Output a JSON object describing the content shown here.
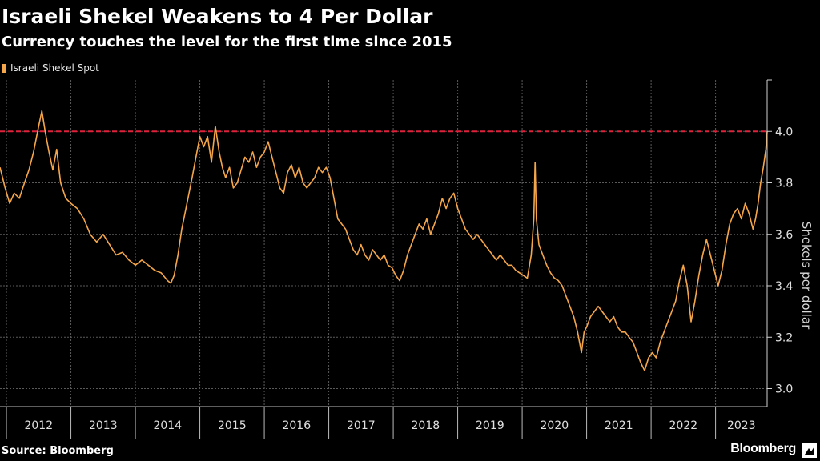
{
  "title": "Israeli Shekel Weakens to 4 Per Dollar",
  "subtitle": "Currency touches the level for the first time since 2015",
  "source": "Source: Bloomberg",
  "brand": "Bloomberg",
  "colors": {
    "series": "#f5a64a",
    "reference": "#e0213a",
    "grid": "#5a5a5a",
    "background": "#000000"
  },
  "chart_data": {
    "type": "line",
    "title": "Israeli Shekel Weakens to 4 Per Dollar",
    "subtitle": "Currency touches the level for the first time since 2015",
    "xlabel": "",
    "ylabel": "Shekels per dollar",
    "legend": [
      "Israeli Shekel Spot"
    ],
    "legend_position": "top-left",
    "y_axis_side": "right",
    "ylim": [
      2.93,
      4.2
    ],
    "yticks": [
      3.0,
      3.2,
      3.4,
      3.6,
      3.8,
      4.0
    ],
    "ytick_labels": [
      "3.0",
      "3.2",
      "3.4",
      "3.6",
      "3.8",
      "4.0"
    ],
    "xlim": [
      2011.9,
      2023.8
    ],
    "x_categories": [
      "2012",
      "2013",
      "2014",
      "2015",
      "2016",
      "2017",
      "2018",
      "2019",
      "2020",
      "2021",
      "2022",
      "2023"
    ],
    "grid": true,
    "reference_line": {
      "value": 4.0,
      "style": "dashed"
    },
    "series": [
      {
        "name": "Israeli Shekel Spot",
        "points": [
          [
            2011.9,
            3.86
          ],
          [
            2011.98,
            3.78
          ],
          [
            2012.05,
            3.72
          ],
          [
            2012.12,
            3.76
          ],
          [
            2012.2,
            3.74
          ],
          [
            2012.28,
            3.8
          ],
          [
            2012.35,
            3.85
          ],
          [
            2012.42,
            3.92
          ],
          [
            2012.5,
            4.02
          ],
          [
            2012.55,
            4.08
          ],
          [
            2012.6,
            4.0
          ],
          [
            2012.66,
            3.92
          ],
          [
            2012.72,
            3.85
          ],
          [
            2012.78,
            3.93
          ],
          [
            2012.84,
            3.8
          ],
          [
            2012.92,
            3.74
          ],
          [
            2013.0,
            3.72
          ],
          [
            2013.1,
            3.7
          ],
          [
            2013.2,
            3.66
          ],
          [
            2013.3,
            3.6
          ],
          [
            2013.4,
            3.57
          ],
          [
            2013.5,
            3.6
          ],
          [
            2013.6,
            3.56
          ],
          [
            2013.7,
            3.52
          ],
          [
            2013.8,
            3.53
          ],
          [
            2013.9,
            3.5
          ],
          [
            2014.0,
            3.48
          ],
          [
            2014.1,
            3.5
          ],
          [
            2014.2,
            3.48
          ],
          [
            2014.3,
            3.46
          ],
          [
            2014.4,
            3.45
          ],
          [
            2014.5,
            3.42
          ],
          [
            2014.55,
            3.41
          ],
          [
            2014.6,
            3.44
          ],
          [
            2014.66,
            3.52
          ],
          [
            2014.72,
            3.62
          ],
          [
            2014.8,
            3.72
          ],
          [
            2014.88,
            3.82
          ],
          [
            2014.94,
            3.9
          ],
          [
            2015.0,
            3.98
          ],
          [
            2015.06,
            3.94
          ],
          [
            2015.12,
            3.98
          ],
          [
            2015.18,
            3.88
          ],
          [
            2015.24,
            4.02
          ],
          [
            2015.3,
            3.92
          ],
          [
            2015.35,
            3.86
          ],
          [
            2015.4,
            3.82
          ],
          [
            2015.46,
            3.86
          ],
          [
            2015.52,
            3.78
          ],
          [
            2015.58,
            3.8
          ],
          [
            2015.64,
            3.85
          ],
          [
            2015.7,
            3.9
          ],
          [
            2015.76,
            3.88
          ],
          [
            2015.82,
            3.92
          ],
          [
            2015.88,
            3.86
          ],
          [
            2015.94,
            3.9
          ],
          [
            2016.0,
            3.92
          ],
          [
            2016.06,
            3.96
          ],
          [
            2016.12,
            3.9
          ],
          [
            2016.18,
            3.84
          ],
          [
            2016.24,
            3.78
          ],
          [
            2016.3,
            3.76
          ],
          [
            2016.36,
            3.84
          ],
          [
            2016.42,
            3.87
          ],
          [
            2016.48,
            3.82
          ],
          [
            2016.54,
            3.86
          ],
          [
            2016.6,
            3.8
          ],
          [
            2016.66,
            3.78
          ],
          [
            2016.72,
            3.8
          ],
          [
            2016.78,
            3.82
          ],
          [
            2016.84,
            3.86
          ],
          [
            2016.9,
            3.84
          ],
          [
            2016.96,
            3.86
          ],
          [
            2017.02,
            3.82
          ],
          [
            2017.08,
            3.74
          ],
          [
            2017.14,
            3.66
          ],
          [
            2017.2,
            3.64
          ],
          [
            2017.26,
            3.62
          ],
          [
            2017.32,
            3.58
          ],
          [
            2017.38,
            3.54
          ],
          [
            2017.44,
            3.52
          ],
          [
            2017.5,
            3.56
          ],
          [
            2017.56,
            3.52
          ],
          [
            2017.62,
            3.5
          ],
          [
            2017.68,
            3.54
          ],
          [
            2017.74,
            3.52
          ],
          [
            2017.8,
            3.5
          ],
          [
            2017.86,
            3.52
          ],
          [
            2017.92,
            3.48
          ],
          [
            2017.98,
            3.47
          ],
          [
            2018.04,
            3.44
          ],
          [
            2018.1,
            3.42
          ],
          [
            2018.16,
            3.46
          ],
          [
            2018.22,
            3.52
          ],
          [
            2018.28,
            3.56
          ],
          [
            2018.34,
            3.6
          ],
          [
            2018.4,
            3.64
          ],
          [
            2018.46,
            3.62
          ],
          [
            2018.52,
            3.66
          ],
          [
            2018.58,
            3.6
          ],
          [
            2018.64,
            3.64
          ],
          [
            2018.7,
            3.68
          ],
          [
            2018.76,
            3.74
          ],
          [
            2018.82,
            3.7
          ],
          [
            2018.88,
            3.74
          ],
          [
            2018.94,
            3.76
          ],
          [
            2019.0,
            3.7
          ],
          [
            2019.06,
            3.66
          ],
          [
            2019.12,
            3.62
          ],
          [
            2019.18,
            3.6
          ],
          [
            2019.24,
            3.58
          ],
          [
            2019.3,
            3.6
          ],
          [
            2019.36,
            3.58
          ],
          [
            2019.42,
            3.56
          ],
          [
            2019.48,
            3.54
          ],
          [
            2019.54,
            3.52
          ],
          [
            2019.6,
            3.5
          ],
          [
            2019.66,
            3.52
          ],
          [
            2019.72,
            3.5
          ],
          [
            2019.78,
            3.48
          ],
          [
            2019.84,
            3.48
          ],
          [
            2019.9,
            3.46
          ],
          [
            2019.96,
            3.45
          ],
          [
            2020.02,
            3.44
          ],
          [
            2020.08,
            3.43
          ],
          [
            2020.14,
            3.52
          ],
          [
            2020.18,
            3.66
          ],
          [
            2020.2,
            3.88
          ],
          [
            2020.22,
            3.66
          ],
          [
            2020.26,
            3.56
          ],
          [
            2020.32,
            3.52
          ],
          [
            2020.38,
            3.48
          ],
          [
            2020.44,
            3.45
          ],
          [
            2020.5,
            3.43
          ],
          [
            2020.56,
            3.42
          ],
          [
            2020.62,
            3.4
          ],
          [
            2020.68,
            3.36
          ],
          [
            2020.74,
            3.32
          ],
          [
            2020.8,
            3.28
          ],
          [
            2020.86,
            3.22
          ],
          [
            2020.92,
            3.14
          ],
          [
            2020.96,
            3.22
          ],
          [
            2021.0,
            3.24
          ],
          [
            2021.06,
            3.28
          ],
          [
            2021.12,
            3.3
          ],
          [
            2021.18,
            3.32
          ],
          [
            2021.24,
            3.3
          ],
          [
            2021.3,
            3.28
          ],
          [
            2021.36,
            3.26
          ],
          [
            2021.42,
            3.28
          ],
          [
            2021.48,
            3.24
          ],
          [
            2021.54,
            3.22
          ],
          [
            2021.6,
            3.22
          ],
          [
            2021.66,
            3.2
          ],
          [
            2021.72,
            3.18
          ],
          [
            2021.78,
            3.14
          ],
          [
            2021.84,
            3.1
          ],
          [
            2021.9,
            3.07
          ],
          [
            2021.96,
            3.12
          ],
          [
            2022.02,
            3.14
          ],
          [
            2022.08,
            3.12
          ],
          [
            2022.14,
            3.18
          ],
          [
            2022.2,
            3.22
          ],
          [
            2022.26,
            3.26
          ],
          [
            2022.32,
            3.3
          ],
          [
            2022.38,
            3.34
          ],
          [
            2022.44,
            3.42
          ],
          [
            2022.5,
            3.48
          ],
          [
            2022.56,
            3.4
          ],
          [
            2022.62,
            3.26
          ],
          [
            2022.68,
            3.34
          ],
          [
            2022.74,
            3.44
          ],
          [
            2022.8,
            3.52
          ],
          [
            2022.86,
            3.58
          ],
          [
            2022.92,
            3.52
          ],
          [
            2022.98,
            3.46
          ],
          [
            2023.04,
            3.4
          ],
          [
            2023.1,
            3.46
          ],
          [
            2023.16,
            3.56
          ],
          [
            2023.22,
            3.64
          ],
          [
            2023.28,
            3.68
          ],
          [
            2023.34,
            3.7
          ],
          [
            2023.4,
            3.66
          ],
          [
            2023.46,
            3.72
          ],
          [
            2023.52,
            3.68
          ],
          [
            2023.58,
            3.62
          ],
          [
            2023.62,
            3.66
          ],
          [
            2023.66,
            3.72
          ],
          [
            2023.7,
            3.8
          ],
          [
            2023.74,
            3.86
          ],
          [
            2023.78,
            3.93
          ],
          [
            2023.8,
            4.0
          ]
        ]
      }
    ]
  }
}
